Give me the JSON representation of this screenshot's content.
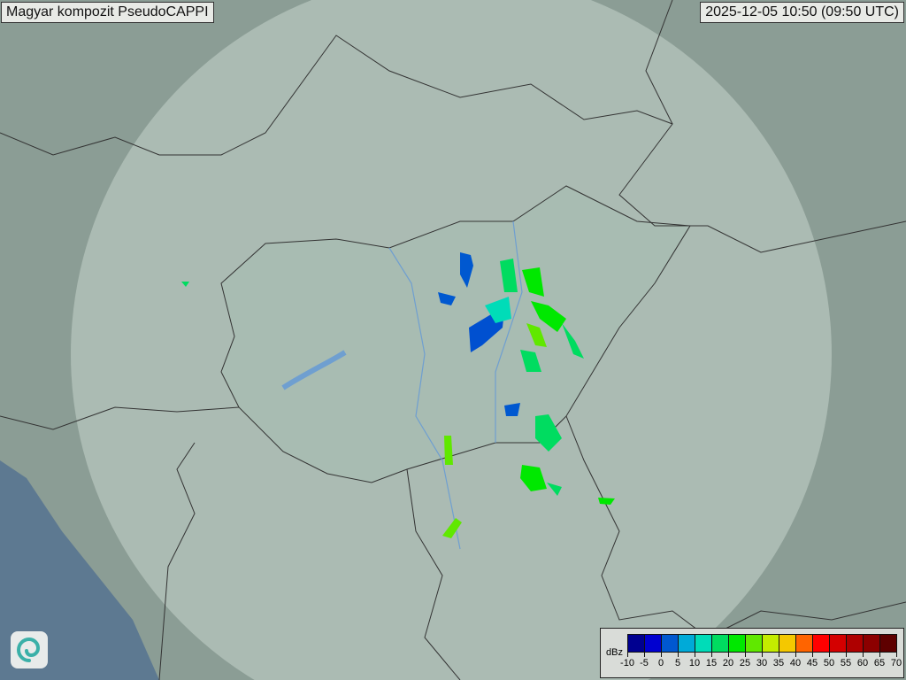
{
  "header": {
    "title": "Magyar kompozit  PseudoCAPPI",
    "timestamp": "2025-12-05 10:50 (09:50 UTC)"
  },
  "legend": {
    "unit": "dBz",
    "ticks": [
      "-10",
      "-5",
      "0",
      "5",
      "10",
      "15",
      "20",
      "25",
      "30",
      "35",
      "40",
      "45",
      "50",
      "55",
      "60",
      "65",
      "70"
    ],
    "colors": [
      "#000090",
      "#0000d0",
      "#0058d0",
      "#00aad8",
      "#00dcb8",
      "#00dc60",
      "#00e800",
      "#60e800",
      "#c4ec00",
      "#f4c800",
      "#ff6400",
      "#ff0000",
      "#d40000",
      "#ae0000",
      "#8c0000",
      "#5e0000"
    ]
  },
  "map": {
    "colors": {
      "land": "#8b9d95",
      "coverage": "#b9c9c0",
      "hungary": "#9fb6ab",
      "sea": "#5d7991",
      "border": "#333333",
      "river": "#6f9fd0"
    }
  },
  "logo": {
    "icon": "swirl-logo-icon"
  }
}
